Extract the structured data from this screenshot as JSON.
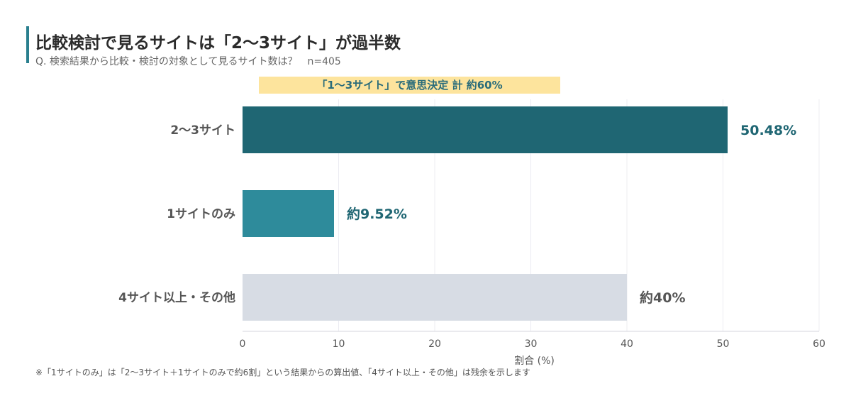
{
  "header": {
    "title": "比較検討で見るサイトは「2〜3サイト」が過半数",
    "subtitle": "Q. 検索結果から比較・検討の対象として見るサイト数は？",
    "sample_size": "n=405",
    "accent_color": "#2a7f8e"
  },
  "highlight": {
    "text": "「1〜3サイト」で意思決定 計 約60%",
    "background": "#fde49d"
  },
  "footnote": "※「1サイトのみ」は「2〜3サイト＋1サイトのみで約6割」という結果からの算出値、「4サイト以上・その他」は残余を示します",
  "chart_data": {
    "type": "bar",
    "orientation": "horizontal",
    "categories": [
      "2〜3サイト",
      "1サイトのみ",
      "4サイト以上・その他"
    ],
    "values": [
      50.48,
      9.52,
      40
    ],
    "data_labels": [
      "50.48%",
      "約9.52%",
      "約40%"
    ],
    "colors": [
      "#1f6673",
      "#2e8b9b",
      "#d7dce4"
    ],
    "label_colors": [
      "#1f6673",
      "#1f6673",
      "#555555"
    ],
    "xlabel": "割合 (%)",
    "xlim": [
      0,
      60
    ],
    "xticks": [
      0,
      10,
      20,
      30,
      40,
      50,
      60
    ],
    "grid": true
  }
}
